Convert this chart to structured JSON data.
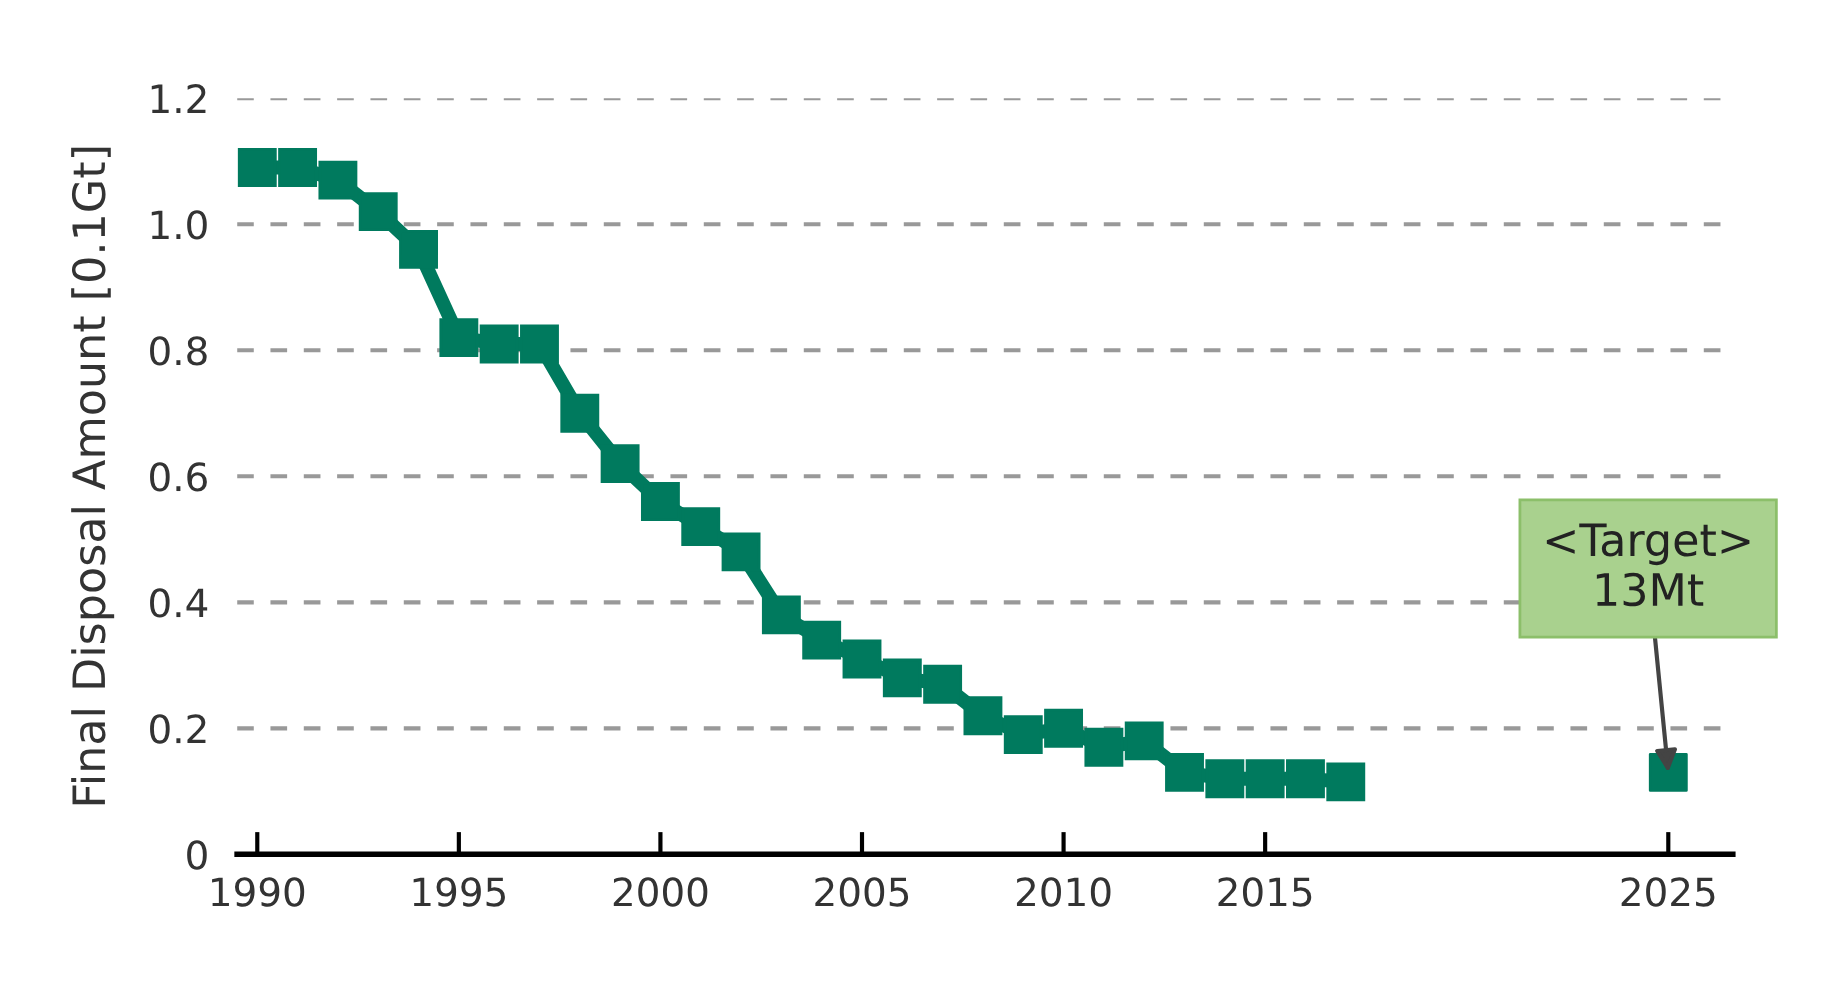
{
  "chart_data": {
    "type": "line",
    "ylabel": "Final Disposal Amount [0.1Gt]",
    "x": [
      1990,
      1991,
      1992,
      1993,
      1994,
      1995,
      1996,
      1997,
      1998,
      1999,
      2000,
      2001,
      2002,
      2003,
      2004,
      2005,
      2006,
      2007,
      2008,
      2009,
      2010,
      2011,
      2012,
      2013,
      2014,
      2015,
      2016,
      2017
    ],
    "series": [
      {
        "color": "#007a5e",
        "values": [
          1.09,
          1.09,
          1.07,
          1.02,
          0.96,
          0.82,
          0.81,
          0.81,
          0.7,
          0.62,
          0.56,
          0.52,
          0.48,
          0.38,
          0.34,
          0.31,
          0.28,
          0.27,
          0.22,
          0.19,
          0.2,
          0.17,
          0.18,
          0.13,
          0.12,
          0.12,
          0.12,
          0.115
        ]
      },
      {
        "type": "scatter",
        "color": "#007a5e",
        "x": [
          2025
        ],
        "values": [
          0.13
        ]
      }
    ],
    "xlim": [
      1989.5,
      2026.6
    ],
    "ylim": [
      0,
      1.2
    ],
    "xticks": [
      1990,
      1995,
      2000,
      2005,
      2010,
      2015,
      2025
    ],
    "yticks": [
      0,
      0.2,
      0.4,
      0.6,
      0.8,
      {
        "value": 1,
        "label": "1.0"
      },
      1.2
    ],
    "grid": "y",
    "marker": "square",
    "line_style": "solid",
    "annotations": [
      {
        "text": "<Target>\n13Mt",
        "x": 2025,
        "y": 0.13
      }
    ]
  }
}
